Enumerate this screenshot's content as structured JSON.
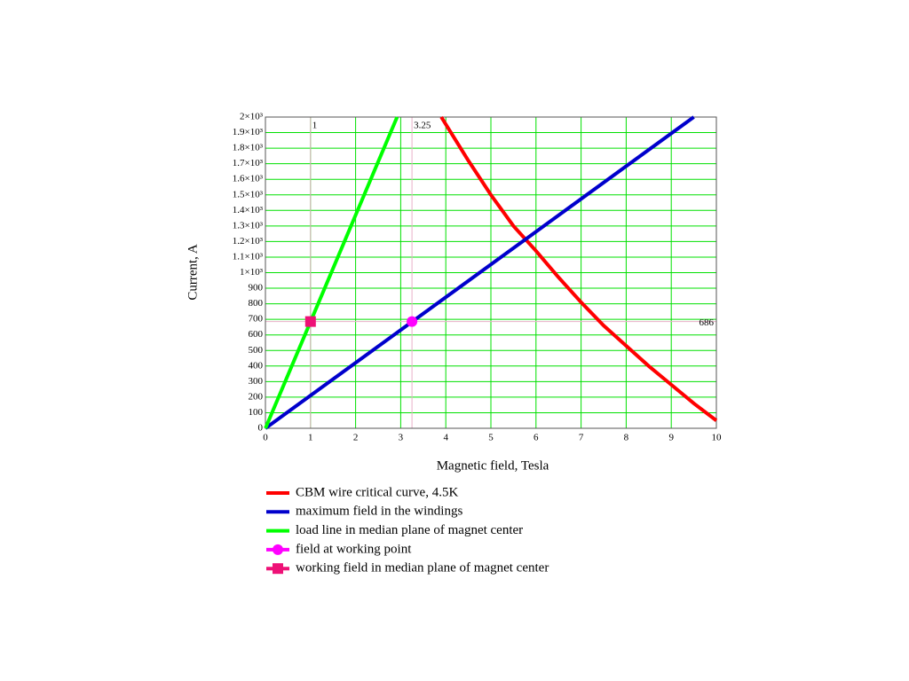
{
  "chart_data": {
    "type": "line",
    "xlabel": "Magnetic field, Tesla",
    "ylabel": "Current, A",
    "xlim": [
      0,
      10
    ],
    "ylim": [
      0,
      2000
    ],
    "xticks": [
      0,
      1,
      2,
      3,
      4,
      5,
      6,
      7,
      8,
      9,
      10
    ],
    "yticks": [
      0,
      100,
      200,
      300,
      400,
      500,
      600,
      700,
      800,
      900,
      {
        "value": 1000,
        "label": "1×10³"
      },
      {
        "value": 1100,
        "label": "1.1×10³"
      },
      {
        "value": 1200,
        "label": "1.2×10³"
      },
      {
        "value": 1300,
        "label": "1.3×10³"
      },
      {
        "value": 1400,
        "label": "1.4×10³"
      },
      {
        "value": 1500,
        "label": "1.5×10³"
      },
      {
        "value": 1600,
        "label": "1.6×10³"
      },
      {
        "value": 1700,
        "label": "1.7×10³"
      },
      {
        "value": 1800,
        "label": "1.8×10³"
      },
      {
        "value": 1900,
        "label": "1.9×10³"
      },
      {
        "value": 2000,
        "label": "2×10³"
      }
    ],
    "grid": true,
    "grid_color": "#00e000",
    "x_markers": [
      1,
      3.25
    ],
    "y_markers": [
      686
    ],
    "series": [
      {
        "name": "CBM wire critical curve, 4.5K",
        "kind": "line",
        "color": "#ff0000",
        "x": [
          3.9,
          4.5,
          5,
          5.5,
          6,
          6.5,
          7,
          7.5,
          8,
          8.5,
          9,
          9.5,
          10
        ],
        "values": [
          2000,
          1720,
          1500,
          1300,
          1140,
          970,
          810,
          660,
          530,
          400,
          280,
          160,
          50
        ]
      },
      {
        "name": "maximum field in the windings",
        "kind": "line",
        "color": "#0000cc",
        "x": [
          0,
          9.5
        ],
        "values": [
          0,
          2000
        ]
      },
      {
        "name": "load line in median plane of magnet center",
        "kind": "line",
        "color": "#00ff00",
        "x": [
          0,
          2.92
        ],
        "values": [
          0,
          2000
        ]
      },
      {
        "name": "field at working point",
        "kind": "marker",
        "marker": "circle",
        "color": "#ff00ff",
        "x": [
          3.25
        ],
        "values": [
          686
        ]
      },
      {
        "name": "working field in median plane of magnet center",
        "kind": "marker",
        "marker": "square",
        "color": "#ee1177",
        "x": [
          1
        ],
        "values": [
          686
        ]
      }
    ]
  }
}
